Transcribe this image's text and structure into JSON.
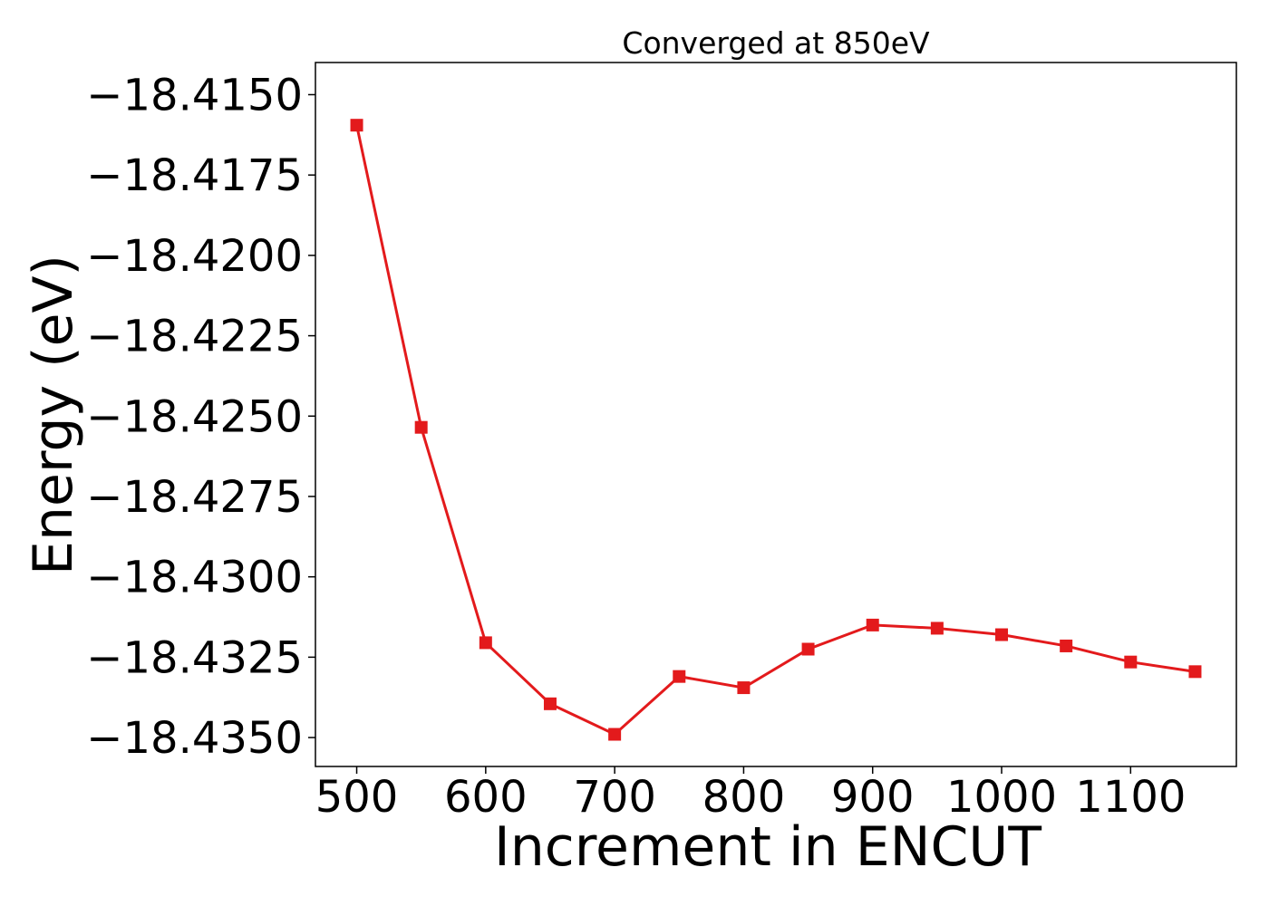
{
  "chart_data": {
    "type": "line",
    "title": "Converged at 850eV",
    "xlabel": "Increment in ENCUT",
    "ylabel": "Energy (eV)",
    "xlim": [
      468,
      1182
    ],
    "ylim": [
      -18.4359,
      -18.414
    ],
    "x_ticks": [
      500,
      600,
      700,
      800,
      900,
      1000,
      1100
    ],
    "y_ticks": [
      -18.415,
      -18.4175,
      -18.42,
      -18.4225,
      -18.425,
      -18.4275,
      -18.43,
      -18.4325,
      -18.435
    ],
    "grid": false,
    "marker": "square",
    "line_color": "#e31a1c",
    "series": [
      {
        "x": [
          500,
          550,
          600,
          650,
          700,
          750,
          800,
          850,
          900,
          950,
          1000,
          1050,
          1100,
          1150
        ],
        "y": [
          -18.41595,
          -18.42535,
          -18.43205,
          -18.43395,
          -18.4349,
          -18.4331,
          -18.43345,
          -18.43225,
          -18.4315,
          -18.4316,
          -18.4318,
          -18.43215,
          -18.43265,
          -18.43295
        ]
      }
    ]
  }
}
